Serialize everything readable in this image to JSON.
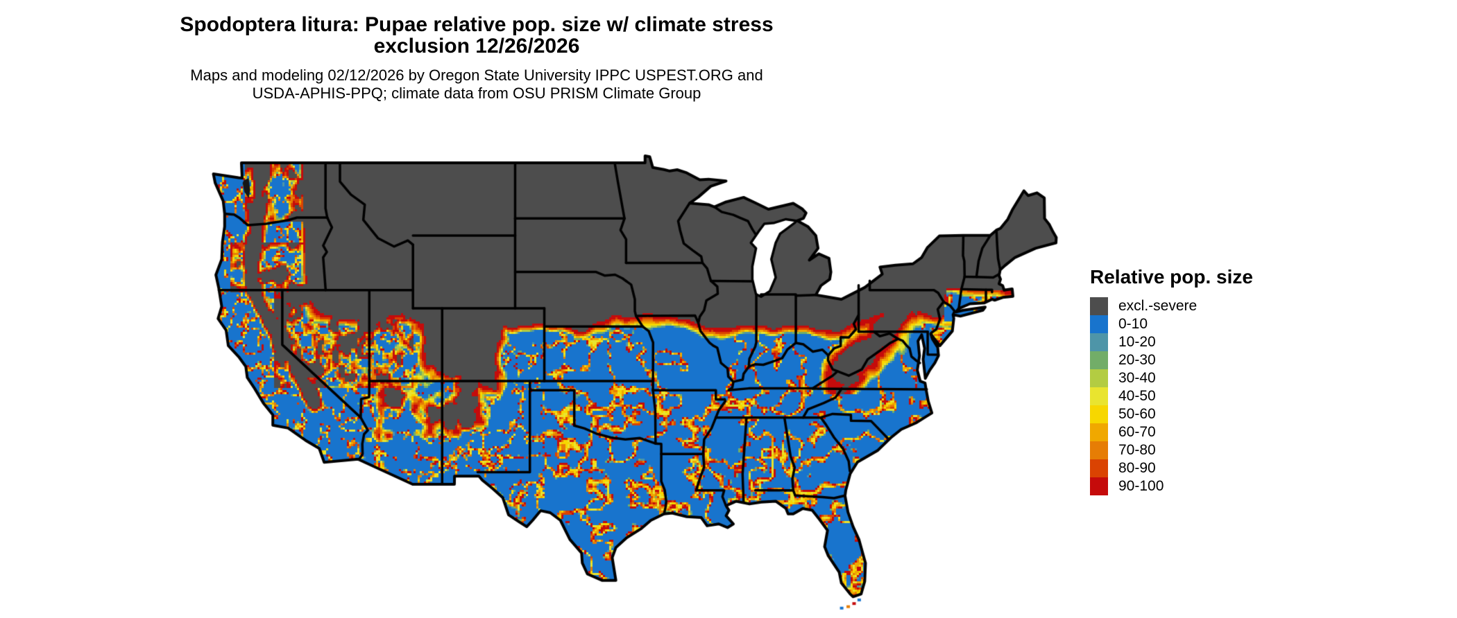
{
  "figure": {
    "title_line1": "Spodoptera litura: Pupae relative pop. size w/ climate stress",
    "title_line2": "exclusion 12/26/2026",
    "subtitle_line1": "Maps and modeling 02/12/2026 by Oregon State University IPPC USPEST.ORG and",
    "subtitle_line2": "USDA-APHIS-PPQ; climate data from OSU PRISM Climate Group"
  },
  "legend": {
    "title": "Relative pop. size",
    "items": [
      {
        "label": "excl.-severe",
        "color": "#4D4D4D"
      },
      {
        "label": "0-10",
        "color": "#1874CD"
      },
      {
        "label": "10-20",
        "color": "#4E95A8"
      },
      {
        "label": "20-30",
        "color": "#72AD68"
      },
      {
        "label": "30-40",
        "color": "#B3CC42"
      },
      {
        "label": "40-50",
        "color": "#E9E42F"
      },
      {
        "label": "50-60",
        "color": "#F7D700"
      },
      {
        "label": "60-70",
        "color": "#F0A800"
      },
      {
        "label": "70-80",
        "color": "#E67D05"
      },
      {
        "label": "80-90",
        "color": "#DA4302"
      },
      {
        "label": "90-100",
        "color": "#C50B0B"
      }
    ]
  },
  "map": {
    "region": "contiguous United States",
    "border_color": "#000000",
    "water_color": "#ffffff",
    "inland_water_fill": "#161616"
  }
}
